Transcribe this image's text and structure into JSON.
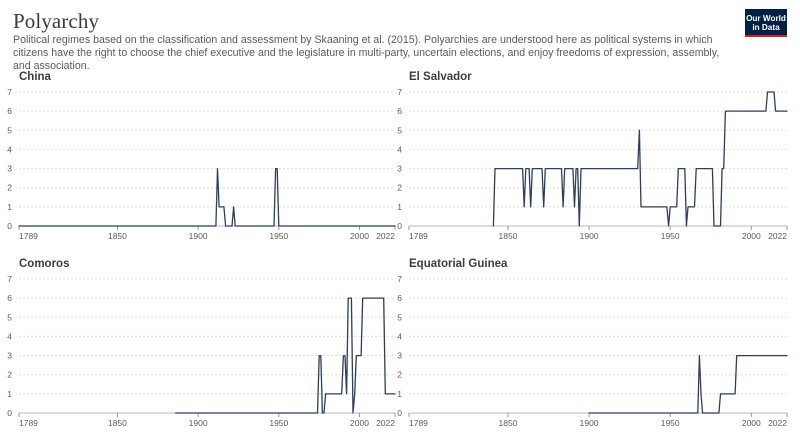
{
  "header": {
    "title": "Polyarchy",
    "subtitle": "Political regimes based on the classification and assessment by Skaaning et al. (2015). Polyarchies are understood here as political systems in which citizens have the right to choose the chief executive and the legislature in multi-party, uncertain elections, and enjoy freedoms of expression, assembly, and association.",
    "logo_line1": "Our World",
    "logo_line2": "in Data"
  },
  "colors": {
    "line": "#2d3e5e",
    "grid": "#dddddd",
    "text": "#5b5b5b",
    "logo_bg": "#002147",
    "logo_accent": "#ce261e"
  },
  "chart_data": [
    {
      "type": "line",
      "title": "China",
      "xlim": [
        1789,
        2022
      ],
      "ylim": [
        0,
        7
      ],
      "xticks": [
        1789,
        1850,
        1900,
        1950,
        2000,
        2022
      ],
      "yticks": [
        0,
        1,
        2,
        3,
        4,
        5,
        6,
        7
      ],
      "points": [
        [
          1789,
          0
        ],
        [
          1911,
          0
        ],
        [
          1912,
          3
        ],
        [
          1913,
          1
        ],
        [
          1916,
          1
        ],
        [
          1917,
          0
        ],
        [
          1921,
          0
        ],
        [
          1922,
          1
        ],
        [
          1923,
          0
        ],
        [
          1947,
          0
        ],
        [
          1948,
          3
        ],
        [
          1949,
          3
        ],
        [
          1950,
          0
        ],
        [
          2022,
          0
        ]
      ]
    },
    {
      "type": "line",
      "title": "El Salvador",
      "xlim": [
        1789,
        2022
      ],
      "ylim": [
        0,
        7
      ],
      "xticks": [
        1789,
        1850,
        1900,
        1950,
        2000,
        2022
      ],
      "yticks": [
        0,
        1,
        2,
        3,
        4,
        5,
        6,
        7
      ],
      "points": [
        [
          1841,
          0
        ],
        [
          1842,
          3
        ],
        [
          1859,
          3
        ],
        [
          1860,
          1
        ],
        [
          1861,
          3
        ],
        [
          1863,
          3
        ],
        [
          1864,
          1
        ],
        [
          1865,
          3
        ],
        [
          1871,
          3
        ],
        [
          1872,
          1
        ],
        [
          1873,
          3
        ],
        [
          1874,
          3
        ],
        [
          1883,
          3
        ],
        [
          1884,
          1
        ],
        [
          1885,
          3
        ],
        [
          1890,
          3
        ],
        [
          1891,
          1
        ],
        [
          1892,
          3
        ],
        [
          1893,
          3
        ],
        [
          1894,
          0
        ],
        [
          1895,
          3
        ],
        [
          1930,
          3
        ],
        [
          1931,
          5
        ],
        [
          1932,
          1
        ],
        [
          1948,
          1
        ],
        [
          1949,
          0
        ],
        [
          1950,
          1
        ],
        [
          1954,
          1
        ],
        [
          1955,
          3
        ],
        [
          1959,
          3
        ],
        [
          1960,
          0
        ],
        [
          1961,
          1
        ],
        [
          1965,
          1
        ],
        [
          1966,
          3
        ],
        [
          1976,
          3
        ],
        [
          1977,
          0
        ],
        [
          1981,
          0
        ],
        [
          1982,
          3
        ],
        [
          1983,
          3
        ],
        [
          1984,
          6
        ],
        [
          2009,
          6
        ],
        [
          2010,
          7
        ],
        [
          2014,
          7
        ],
        [
          2015,
          6
        ],
        [
          2022,
          6
        ]
      ]
    },
    {
      "type": "line",
      "title": "Comoros",
      "xlim": [
        1789,
        2022
      ],
      "ylim": [
        0,
        7
      ],
      "xticks": [
        1789,
        1850,
        1900,
        1950,
        2000,
        2022
      ],
      "yticks": [
        0,
        1,
        2,
        3,
        4,
        5,
        6,
        7
      ],
      "points": [
        [
          1886,
          0
        ],
        [
          1974,
          0
        ],
        [
          1975,
          3
        ],
        [
          1976,
          3
        ],
        [
          1977,
          0
        ],
        [
          1978,
          0
        ],
        [
          1979,
          1
        ],
        [
          1989,
          1
        ],
        [
          1990,
          3
        ],
        [
          1991,
          3
        ],
        [
          1992,
          1
        ],
        [
          1993,
          6
        ],
        [
          1995,
          6
        ],
        [
          1996,
          0
        ],
        [
          1997,
          1
        ],
        [
          1998,
          3
        ],
        [
          2001,
          3
        ],
        [
          2002,
          6
        ],
        [
          2015,
          6
        ],
        [
          2016,
          1
        ],
        [
          2022,
          1
        ]
      ]
    },
    {
      "type": "line",
      "title": "Equatorial Guinea",
      "xlim": [
        1789,
        2022
      ],
      "ylim": [
        0,
        7
      ],
      "xticks": [
        1789,
        1850,
        1900,
        1950,
        2000,
        2022
      ],
      "yticks": [
        0,
        1,
        2,
        3,
        4,
        5,
        6,
        7
      ],
      "points": [
        [
          1900,
          0
        ],
        [
          1967,
          0
        ],
        [
          1968,
          3
        ],
        [
          1969,
          1
        ],
        [
          1970,
          0
        ],
        [
          1980,
          0
        ],
        [
          1981,
          1
        ],
        [
          1990,
          1
        ],
        [
          1991,
          3
        ],
        [
          2022,
          3
        ]
      ]
    }
  ]
}
